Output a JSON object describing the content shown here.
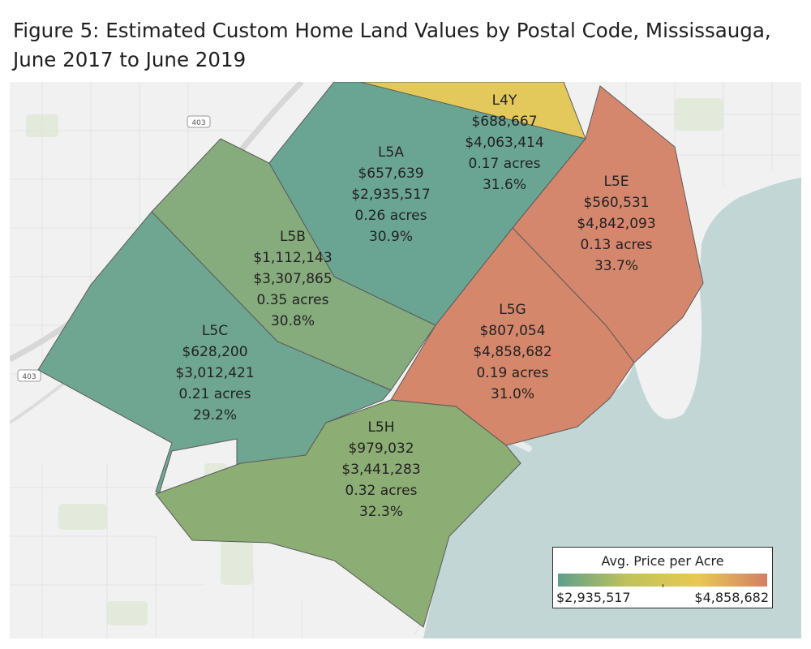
{
  "title": "Figure 5: Estimated Custom Home Land Values by Postal Code, Mississauga, June 2017 to June 2019",
  "map": {
    "highway_labels": [
      "403",
      "403"
    ],
    "regions": [
      {
        "code": "L4Y",
        "avg_value": "$688,667",
        "price_per_acre": "$4,063,414",
        "lot_size": "0.17 acres",
        "share": "31.6%",
        "color": "#e3c95b"
      },
      {
        "code": "L5A",
        "avg_value": "$657,639",
        "price_per_acre": "$2,935,517",
        "lot_size": "0.26 acres",
        "share": "30.9%",
        "color": "#6aa594"
      },
      {
        "code": "L5E",
        "avg_value": "$560,531",
        "price_per_acre": "$4,842,093",
        "lot_size": "0.13 acres",
        "share": "33.7%",
        "color": "#d5876d"
      },
      {
        "code": "L5B",
        "avg_value": "$1,112,143",
        "price_per_acre": "$3,307,865",
        "lot_size": "0.35 acres",
        "share": "30.8%",
        "color": "#86ab7d"
      },
      {
        "code": "L5G",
        "avg_value": "$807,054",
        "price_per_acre": "$4,858,682",
        "lot_size": "0.19 acres",
        "share": "31.0%",
        "color": "#d4876b"
      },
      {
        "code": "L5C",
        "avg_value": "$628,200",
        "price_per_acre": "$3,012,421",
        "lot_size": "0.21 acres",
        "share": "29.2%",
        "color": "#6fa691"
      },
      {
        "code": "L5H",
        "avg_value": "$979,032",
        "price_per_acre": "$3,441,283",
        "lot_size": "0.32 acres",
        "share": "32.3%",
        "color": "#8cad73"
      }
    ]
  },
  "legend": {
    "title": "Avg. Price per Acre",
    "min_label": "$2,935,517",
    "max_label": "$4,858,682",
    "min": 2935517,
    "max": 4858682,
    "tick_value": 3900000,
    "gradient_colors": [
      "#5f9f8b",
      "#bfc35a",
      "#e8c952",
      "#d37f67"
    ]
  }
}
